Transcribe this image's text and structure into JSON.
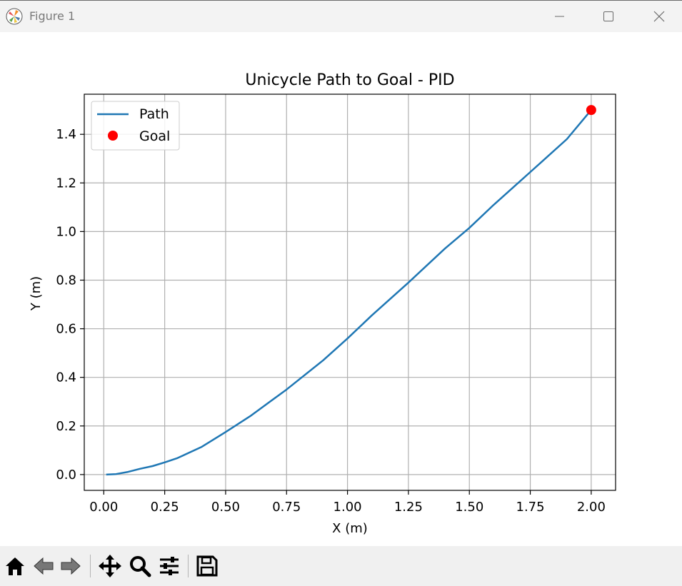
{
  "window": {
    "title": "Figure 1"
  },
  "toolbar": {
    "buttons": [
      "home-icon",
      "back-icon",
      "forward-icon",
      "pan-icon",
      "zoom-icon",
      "configure-icon",
      "save-icon"
    ]
  },
  "colors": {
    "path": "#1f77b4",
    "goal": "#ff0000",
    "grid": "#b0b0b0"
  },
  "chart_data": {
    "type": "line",
    "title": "Unicycle Path to Goal - PID",
    "xlabel": "X (m)",
    "ylabel": "Y (m)",
    "xlim": [
      -0.08,
      2.1
    ],
    "ylim": [
      -0.065,
      1.565
    ],
    "xticks": [
      0.0,
      0.25,
      0.5,
      0.75,
      1.0,
      1.25,
      1.5,
      1.75,
      2.0
    ],
    "xtick_labels": [
      "0.00",
      "0.25",
      "0.50",
      "0.75",
      "1.00",
      "1.25",
      "1.50",
      "1.75",
      "2.00"
    ],
    "yticks": [
      0.0,
      0.2,
      0.4,
      0.6,
      0.8,
      1.0,
      1.2,
      1.4
    ],
    "ytick_labels": [
      "0.0",
      "0.2",
      "0.4",
      "0.6",
      "0.8",
      "1.0",
      "1.2",
      "1.4"
    ],
    "grid": true,
    "legend": {
      "position": "upper-left",
      "entries": [
        "Path",
        "Goal"
      ]
    },
    "series": [
      {
        "name": "Path",
        "kind": "line",
        "x": [
          0.01,
          0.05,
          0.1,
          0.15,
          0.2,
          0.25,
          0.3,
          0.4,
          0.5,
          0.6,
          0.75,
          0.9,
          1.0,
          1.1,
          1.25,
          1.4,
          1.5,
          1.6,
          1.75,
          1.9,
          2.0
        ],
        "y": [
          0.0,
          0.002,
          0.011,
          0.024,
          0.035,
          0.05,
          0.067,
          0.113,
          0.175,
          0.24,
          0.35,
          0.47,
          0.56,
          0.655,
          0.79,
          0.93,
          1.015,
          1.11,
          1.245,
          1.38,
          1.5
        ]
      },
      {
        "name": "Goal",
        "kind": "point",
        "x": [
          2.0
        ],
        "y": [
          1.5
        ]
      }
    ]
  }
}
